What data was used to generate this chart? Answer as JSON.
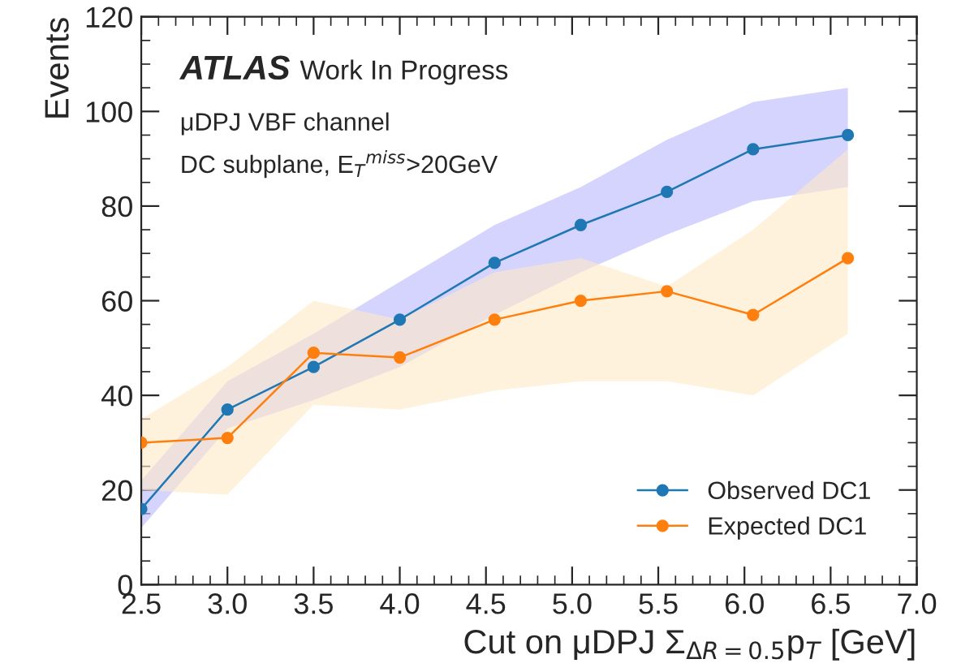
{
  "chart_data": {
    "type": "line",
    "xlabel": "Cut on μDPJ Σ$_{ΔR=0.5}$p$_{T}$ [GeV]",
    "ylabel": "Events",
    "annotations": [
      "ATLAS",
      "Work In Progress",
      "μDPJ VBF channel",
      "DC subplane, E$_{T}$$^{miss}$>20GeV"
    ],
    "xlim": [
      2.5,
      7.0
    ],
    "ylim": [
      0,
      120
    ],
    "xticks": [
      {
        "value": 2.5,
        "label": "2.5"
      },
      {
        "value": 3.0,
        "label": "3.0"
      },
      {
        "value": 3.5,
        "label": "3.5"
      },
      {
        "value": 4.0,
        "label": "4.0"
      },
      {
        "value": 4.5,
        "label": "4.5"
      },
      {
        "value": 5.0,
        "label": "5.0"
      },
      {
        "value": 5.5,
        "label": "5.5"
      },
      {
        "value": 6.0,
        "label": "6.0"
      },
      {
        "value": 6.5,
        "label": "6.5"
      },
      {
        "value": 7.0,
        "label": "7.0"
      }
    ],
    "yticks": [
      0,
      20,
      40,
      60,
      80,
      100,
      120
    ],
    "marker": "circle",
    "line_style": "solid",
    "legend": "lower right",
    "grid": false,
    "series": [
      {
        "name": "Observed DC1",
        "color": "#1f77b4",
        "x": [
          2.5,
          3.0,
          3.5,
          4.0,
          4.55,
          5.05,
          5.55,
          6.05,
          6.6
        ],
        "values": [
          16,
          37,
          46,
          56,
          68,
          76,
          83,
          92,
          95
        ],
        "lower": [
          12,
          33,
          39,
          46,
          57,
          66,
          74,
          81,
          84
        ],
        "upper": [
          22,
          43,
          53,
          64,
          76,
          84,
          94,
          102,
          105
        ]
      },
      {
        "name": "Expected DC1",
        "color": "#ff7f0e",
        "x": [
          2.5,
          3.0,
          3.5,
          4.0,
          4.55,
          5.05,
          5.55,
          6.05,
          6.6
        ],
        "values": [
          30,
          31,
          49,
          48,
          56,
          60,
          62,
          57,
          69
        ],
        "lower": [
          20,
          19,
          38,
          37,
          41,
          43,
          43,
          40,
          53
        ],
        "upper": [
          35,
          46,
          60,
          56,
          66,
          69,
          63,
          75,
          92
        ]
      }
    ]
  }
}
